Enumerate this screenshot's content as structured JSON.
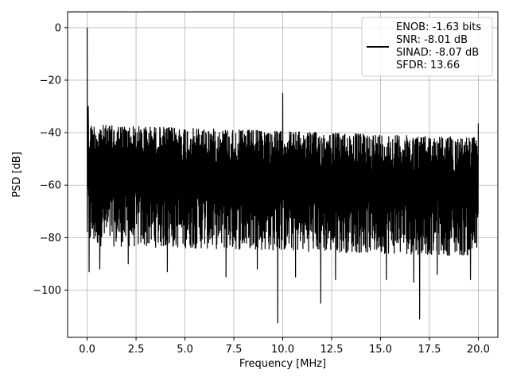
{
  "chart_data": {
    "type": "line",
    "xlabel": "Frequency [MHz]",
    "ylabel": "PSD [dB]",
    "xlim": [
      -1.0,
      21.0
    ],
    "ylim": [
      -118,
      6
    ],
    "xticks": [
      0.0,
      2.5,
      5.0,
      7.5,
      10.0,
      12.5,
      15.0,
      17.5,
      20.0
    ],
    "xtick_labels": [
      "0.0",
      "2.5",
      "5.0",
      "7.5",
      "10.0",
      "12.5",
      "15.0",
      "17.5",
      "20.0"
    ],
    "yticks": [
      0,
      -20,
      -40,
      -60,
      -80,
      -100
    ],
    "ytick_labels": [
      "0",
      "−20",
      "−40",
      "−60",
      "−80",
      "−100"
    ],
    "grid": true,
    "legend_position": "top-right",
    "legend_entries": [
      "ENOB: -1.63 bits",
      "SNR: -8.01 dB",
      "SINAD: -8.07 dB",
      "SFDR: 13.66"
    ],
    "series": [
      {
        "color": "#000000",
        "noise_floor": {
          "x_range": [
            0.0,
            20.0
          ],
          "upper_db": [
            -37,
            -42
          ],
          "lower_db": [
            -83,
            -87
          ]
        },
        "peaks": [
          {
            "x": 0.0,
            "y": 0.0
          },
          {
            "x": 0.05,
            "y": -30.0
          },
          {
            "x": 10.0,
            "y": -25.0
          },
          {
            "x": 20.0,
            "y": -36.5
          }
        ],
        "dips": [
          {
            "x": 0.1,
            "y": -93
          },
          {
            "x": 0.65,
            "y": -92
          },
          {
            "x": 2.1,
            "y": -90
          },
          {
            "x": 4.1,
            "y": -93
          },
          {
            "x": 7.1,
            "y": -95
          },
          {
            "x": 8.7,
            "y": -92
          },
          {
            "x": 9.75,
            "y": -112.5
          },
          {
            "x": 10.65,
            "y": -95
          },
          {
            "x": 11.95,
            "y": -105
          },
          {
            "x": 12.7,
            "y": -96
          },
          {
            "x": 15.3,
            "y": -96
          },
          {
            "x": 16.7,
            "y": -97
          },
          {
            "x": 17.0,
            "y": -111
          },
          {
            "x": 17.9,
            "y": -94
          },
          {
            "x": 19.6,
            "y": -96
          }
        ]
      }
    ]
  }
}
